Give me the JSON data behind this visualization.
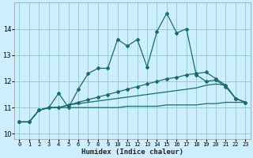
{
  "xlabel": "Humidex (Indice chaleur)",
  "xlim": [
    -0.5,
    23.5
  ],
  "ylim": [
    9.8,
    15.0
  ],
  "xticks": [
    0,
    1,
    2,
    3,
    4,
    5,
    6,
    7,
    8,
    9,
    10,
    11,
    12,
    13,
    14,
    15,
    16,
    17,
    18,
    19,
    20,
    21,
    22,
    23
  ],
  "yticks": [
    10,
    11,
    12,
    13,
    14
  ],
  "background_color": "#cceeff",
  "grid_color": "#99cccc",
  "line_color": "#1a6b6b",
  "line_main_x": [
    0,
    1,
    2,
    3,
    4,
    5,
    6,
    7,
    8,
    9,
    10,
    11,
    12,
    13,
    14,
    15,
    16,
    17,
    18,
    19,
    20,
    21,
    22,
    23
  ],
  "line_main_y": [
    10.45,
    10.45,
    10.9,
    11.0,
    11.55,
    11.0,
    11.7,
    12.3,
    12.5,
    12.5,
    13.6,
    13.35,
    13.6,
    12.55,
    13.9,
    14.6,
    13.85,
    14.0,
    12.25,
    12.0,
    12.05,
    11.8,
    11.35,
    11.2
  ],
  "line_med_x": [
    0,
    1,
    2,
    3,
    4,
    5,
    6,
    7,
    8,
    9,
    10,
    11,
    12,
    13,
    14,
    15,
    16,
    17,
    18,
    19,
    20,
    21,
    22,
    23
  ],
  "line_med_y": [
    10.45,
    10.45,
    10.9,
    11.0,
    11.0,
    11.1,
    11.2,
    11.3,
    11.4,
    11.5,
    11.6,
    11.7,
    11.8,
    11.9,
    12.0,
    12.1,
    12.15,
    12.25,
    12.3,
    12.35,
    12.1,
    11.85,
    11.35,
    11.2
  ],
  "line_low_x": [
    0,
    1,
    2,
    3,
    4,
    5,
    6,
    7,
    8,
    9,
    10,
    11,
    12,
    13,
    14,
    15,
    16,
    17,
    18,
    19,
    20,
    21,
    22,
    23
  ],
  "line_low_y": [
    10.45,
    10.45,
    10.9,
    11.0,
    11.0,
    11.1,
    11.15,
    11.2,
    11.25,
    11.3,
    11.35,
    11.4,
    11.45,
    11.5,
    11.55,
    11.6,
    11.65,
    11.7,
    11.75,
    11.85,
    11.9,
    11.85,
    11.35,
    11.2
  ],
  "line_flat_x": [
    0,
    1,
    2,
    3,
    4,
    5,
    6,
    7,
    8,
    9,
    10,
    11,
    12,
    13,
    14,
    15,
    16,
    17,
    18,
    19,
    20,
    21,
    22,
    23
  ],
  "line_flat_y": [
    10.45,
    10.45,
    10.9,
    11.0,
    11.0,
    11.0,
    11.0,
    11.0,
    11.0,
    11.0,
    11.0,
    11.05,
    11.05,
    11.05,
    11.05,
    11.1,
    11.1,
    11.1,
    11.1,
    11.15,
    11.15,
    11.2,
    11.2,
    11.2
  ]
}
